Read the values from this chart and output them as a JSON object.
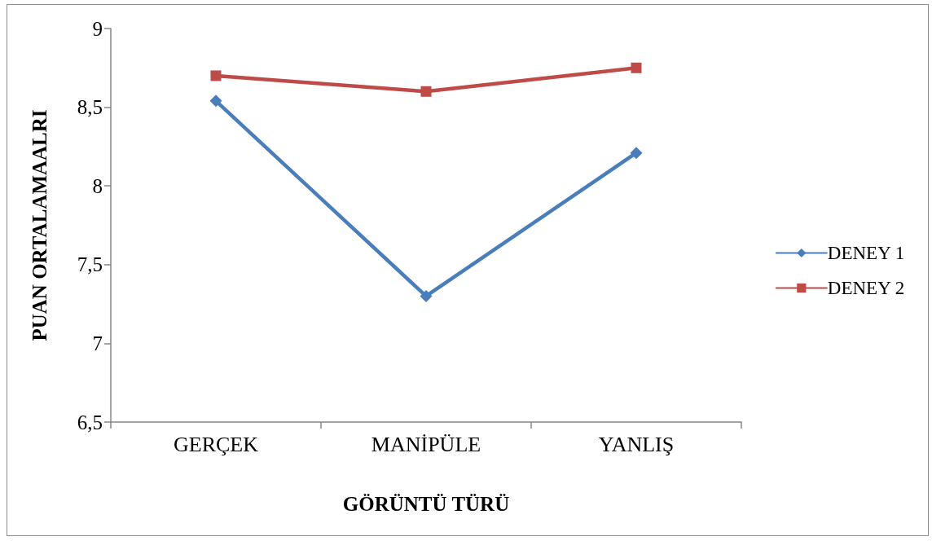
{
  "chart_data": {
    "type": "line",
    "categories": [
      "GERÇEK",
      "MANİPÜLE",
      "YANLIŞ"
    ],
    "series": [
      {
        "name": "DENEY 1",
        "color": "#4a7ebb",
        "marker": "diamond",
        "values": [
          8.54,
          7.3,
          8.21
        ]
      },
      {
        "name": "DENEY 2",
        "color": "#be4b48",
        "marker": "square",
        "values": [
          8.7,
          8.6,
          8.75
        ]
      }
    ],
    "xlabel": "GÖRÜNTÜ TÜRÜ",
    "ylabel": "PUAN ORTALAMAALRI",
    "ylim": [
      6.5,
      9
    ],
    "yticks": [
      {
        "value": 6.5,
        "label": "6,5"
      },
      7,
      {
        "value": 7.5,
        "label": "7,5"
      },
      8,
      {
        "value": 8.5,
        "label": "8,5"
      },
      9
    ],
    "grid": false,
    "legend": "right",
    "line_style": "solid"
  }
}
